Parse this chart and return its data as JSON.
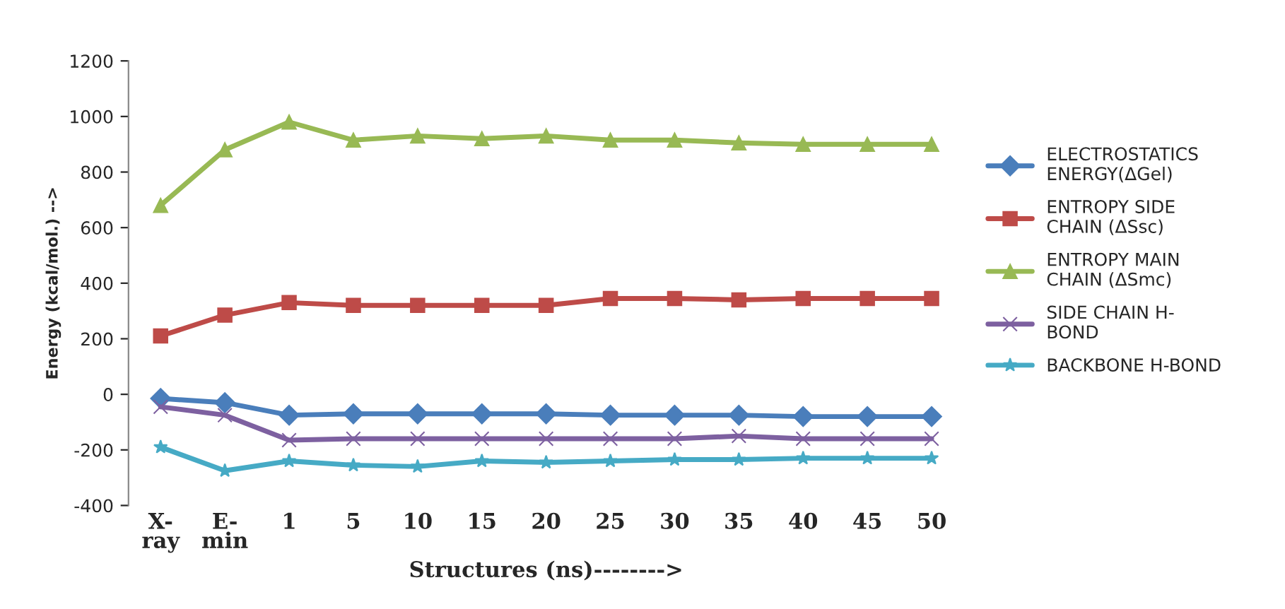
{
  "chart_data": {
    "type": "line",
    "xlabel": "Structures (ns)-------->",
    "ylabel": "Energy (kcal/mol.) -->",
    "categories": [
      "X-\nray",
      "E-\nmin",
      "1",
      "5",
      "10",
      "15",
      "20",
      "25",
      "30",
      "35",
      "40",
      "45",
      "50"
    ],
    "ylim": [
      -400,
      1200
    ],
    "yticks": [
      -400,
      -200,
      0,
      200,
      400,
      600,
      800,
      1000,
      1200
    ],
    "grid": false,
    "legend": "right",
    "line_style": "solid",
    "series": [
      {
        "name": "ELECTROSTATICS\nENERGY(ΔGel)",
        "color": "#4a7ebb",
        "marker": "diamond",
        "values": [
          -15,
          -30,
          -75,
          -70,
          -70,
          -70,
          -70,
          -75,
          -75,
          -75,
          -80,
          -80,
          -80
        ]
      },
      {
        "name": "ENTROPY SIDE\nCHAIN (ΔSsc)",
        "color": "#be4b48",
        "marker": "square",
        "values": [
          210,
          285,
          330,
          320,
          320,
          320,
          320,
          345,
          345,
          340,
          345,
          345,
          345
        ]
      },
      {
        "name": "ENTROPY MAIN\nCHAIN (ΔSmc)",
        "color": "#98b954",
        "marker": "triangle",
        "values": [
          680,
          880,
          980,
          915,
          930,
          920,
          930,
          915,
          915,
          905,
          900,
          900,
          900
        ]
      },
      {
        "name": "SIDE CHAIN H-\nBOND",
        "color": "#7d60a0",
        "marker": "cross",
        "values": [
          -45,
          -75,
          -165,
          -160,
          -160,
          -160,
          -160,
          -160,
          -160,
          -150,
          -160,
          -160,
          -160
        ]
      },
      {
        "name": "BACKBONE H-BOND",
        "color": "#46aac5",
        "marker": "star",
        "values": [
          -190,
          -275,
          -240,
          -255,
          -260,
          -240,
          -245,
          -240,
          -235,
          -235,
          -230,
          -230,
          -230
        ]
      }
    ]
  }
}
